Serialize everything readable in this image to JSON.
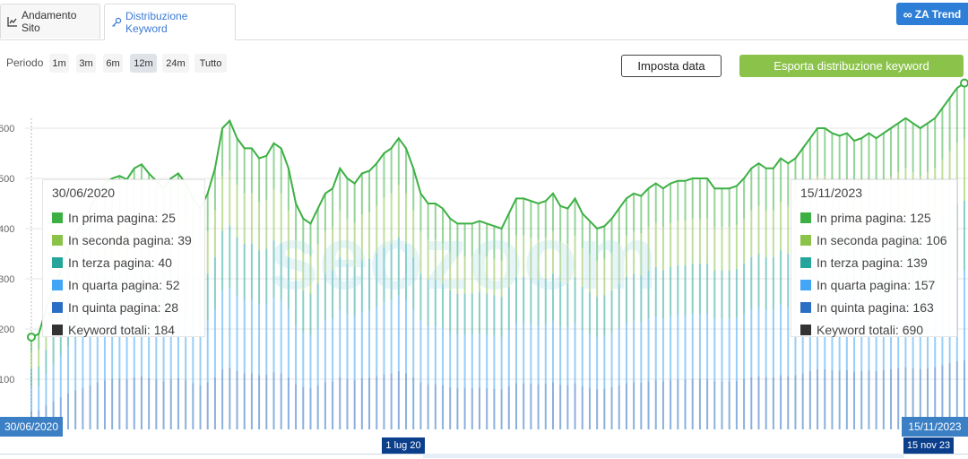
{
  "tabs": [
    {
      "label": "Andamento Sito",
      "icon": "line-chart-icon"
    },
    {
      "label": "Distribuzione Keyword",
      "icon": "key-icon"
    }
  ],
  "za_trend": {
    "label": "ZA Trend",
    "icon": "infinity-icon"
  },
  "period": {
    "label": "Periodo",
    "options": [
      "1m",
      "3m",
      "6m",
      "12m",
      "24m",
      "Tutto"
    ],
    "selected": "12m"
  },
  "buttons": {
    "set_date": "Imposta data",
    "export": "Esporta distribuzione keyword"
  },
  "watermark": "seozoom",
  "colors": {
    "prima": "#3cb043",
    "seconda": "#8bc34a",
    "terza": "#26a69a",
    "quarta": "#42a5f5",
    "quinta": "#2a6fc4",
    "totali": "#333333"
  },
  "chart_data": {
    "type": "bar",
    "y_ticks": [
      100,
      200,
      300,
      400,
      500,
      600
    ],
    "ylim": [
      0,
      700
    ],
    "x_start": "30/06/2020",
    "x_end": "15/11/2023",
    "total_line": {
      "name": "Keyword totali",
      "values": [
        184,
        190,
        240,
        280,
        320,
        360,
        390,
        410,
        440,
        470,
        490,
        500,
        505,
        498,
        520,
        528,
        510,
        495,
        480,
        500,
        510,
        490,
        460,
        440,
        470,
        520,
        600,
        615,
        580,
        560,
        560,
        540,
        545,
        570,
        560,
        520,
        450,
        420,
        410,
        440,
        470,
        480,
        520,
        500,
        490,
        510,
        515,
        530,
        550,
        560,
        580,
        560,
        520,
        470,
        450,
        450,
        440,
        420,
        410,
        410,
        410,
        415,
        410,
        405,
        400,
        430,
        460,
        460,
        455,
        450,
        455,
        470,
        445,
        440,
        460,
        430,
        415,
        400,
        405,
        420,
        440,
        460,
        470,
        465,
        480,
        490,
        480,
        490,
        495,
        495,
        500,
        500,
        500,
        480,
        480,
        480,
        485,
        500,
        520,
        530,
        520,
        520,
        540,
        530,
        540,
        560,
        580,
        600,
        600,
        590,
        585,
        590,
        575,
        580,
        590,
        580,
        590,
        600,
        610,
        620,
        610,
        600,
        610,
        620,
        640,
        660,
        680,
        690
      ]
    },
    "tooltips": [
      {
        "date": "30/06/2020",
        "rows": [
          {
            "label": "In prima pagina: 25",
            "key": "prima"
          },
          {
            "label": "In seconda pagina: 39",
            "key": "seconda"
          },
          {
            "label": "In terza pagina: 40",
            "key": "terza"
          },
          {
            "label": "In quarta pagina: 52",
            "key": "quarta"
          },
          {
            "label": "In quinta pagina: 28",
            "key": "quinta"
          },
          {
            "label": "Keyword totali: 184",
            "key": "totali"
          }
        ]
      },
      {
        "date": "15/11/2023",
        "rows": [
          {
            "label": "In prima pagina: 125",
            "key": "prima"
          },
          {
            "label": "In seconda pagina: 106",
            "key": "seconda"
          },
          {
            "label": "In terza pagina: 139",
            "key": "terza"
          },
          {
            "label": "In quarta pagina: 157",
            "key": "quarta"
          },
          {
            "label": "In quinta pagina: 163",
            "key": "quinta"
          },
          {
            "label": "Keyword totali: 690",
            "key": "totali"
          }
        ]
      }
    ],
    "navigator": {
      "start_label": "1 lug 20",
      "end_label": "15 nov 23"
    }
  }
}
